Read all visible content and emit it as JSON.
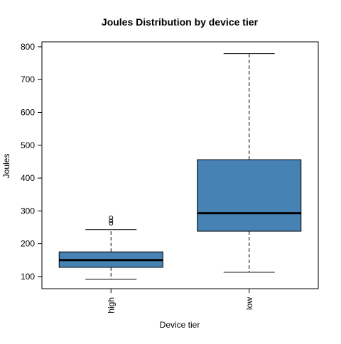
{
  "chart_data": {
    "type": "boxplot",
    "title": "Joules Distribution by device tier",
    "xlabel": "Device tier",
    "ylabel": "Joules",
    "categories": [
      "high",
      "low"
    ],
    "ylim": [
      63,
      815
    ],
    "yticks": [
      100,
      200,
      300,
      400,
      500,
      600,
      700,
      800
    ],
    "yticks_labels": [
      "100",
      "200",
      "300",
      "400",
      "500",
      "600",
      "700",
      "800"
    ],
    "grid": false,
    "box_color": "#4682B4",
    "boxes": [
      {
        "category": "high",
        "whisker_low": 92,
        "q1": 128,
        "median": 150,
        "q3": 175,
        "whisker_high": 243,
        "outliers": [
          262,
          270,
          279
        ]
      },
      {
        "category": "low",
        "whisker_low": 113,
        "q1": 238,
        "median": 293,
        "q3": 456,
        "whisker_high": 779,
        "outliers": []
      }
    ]
  }
}
